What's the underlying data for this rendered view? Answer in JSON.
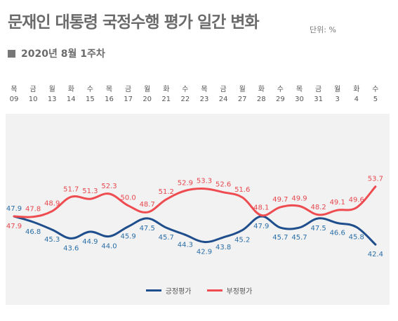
{
  "header": {
    "title": "문재인 대통령 국정수행 평가 일간 변화",
    "unit": "단위: %",
    "subtitle": "2020년 8월 1주차"
  },
  "colors": {
    "positive": "#1f4e8c",
    "negative": "#ee4c50",
    "positive_label": "#2a6ea8",
    "negative_label": "#e8474d",
    "panel": "#f2f2f2"
  },
  "chart_data": {
    "type": "line",
    "categories": [
      "09",
      "10",
      "13",
      "14",
      "15",
      "16",
      "17",
      "20",
      "21",
      "22",
      "23",
      "24",
      "27",
      "28",
      "29",
      "30",
      "31",
      "3",
      "4",
      "5"
    ],
    "weekdays": [
      "목",
      "금",
      "월",
      "화",
      "수",
      "목",
      "금",
      "월",
      "화",
      "수",
      "목",
      "금",
      "월",
      "화",
      "수",
      "목",
      "금",
      "월",
      "화",
      "수"
    ],
    "series": [
      {
        "name": "긍정평가",
        "values": [
          47.9,
          46.8,
          45.3,
          43.6,
          44.9,
          44.0,
          45.9,
          47.5,
          45.7,
          44.3,
          42.9,
          43.8,
          45.2,
          47.9,
          45.7,
          45.7,
          47.5,
          46.6,
          45.8,
          42.4
        ]
      },
      {
        "name": "부정평가",
        "values": [
          47.9,
          47.8,
          48.9,
          51.7,
          51.3,
          52.3,
          50.0,
          48.7,
          51.2,
          52.9,
          53.3,
          52.6,
          51.6,
          48.1,
          49.7,
          49.9,
          48.2,
          49.1,
          49.6,
          53.7
        ]
      }
    ],
    "legend_position": "bottom-center",
    "grid": false,
    "xlabel": "",
    "ylabel": ""
  }
}
